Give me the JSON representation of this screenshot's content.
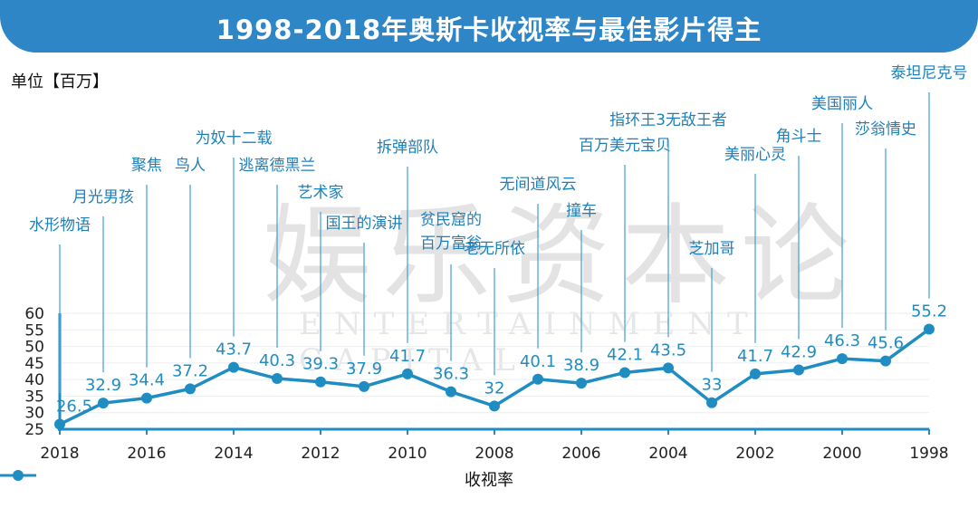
{
  "header": {
    "title": "1998-2018年奥斯卡收视率与最佳影片得主"
  },
  "unit_label": "单位【百万】",
  "legend": {
    "label": "收视率",
    "color": "#1f8dc1"
  },
  "watermark": {
    "cn": "娱乐资本论",
    "en": "ENTERTAINMENT CAPITAL"
  },
  "chart_data": {
    "type": "line",
    "title": "1998-2018年奥斯卡收视率与最佳影片得主",
    "ylabel": "单位【百万】",
    "ylim": [
      25,
      60
    ],
    "yticks": [
      25,
      30,
      35,
      40,
      45,
      50,
      55,
      60
    ],
    "xlabels": [
      "2018",
      "2016",
      "2014",
      "2012",
      "2010",
      "2008",
      "2006",
      "2004",
      "2002",
      "2000",
      "1998"
    ],
    "series": [
      {
        "name": "收视率",
        "color": "#1f8dc1",
        "x": [
          2018,
          2017,
          2016,
          2015,
          2014,
          2013,
          2012,
          2011,
          2010,
          2009,
          2008,
          2007,
          2006,
          2005,
          2004,
          2003,
          2002,
          2001,
          2000,
          1999,
          1998
        ],
        "values": [
          26.5,
          32.9,
          34.4,
          37.2,
          43.7,
          40.3,
          39.3,
          37.9,
          41.7,
          36.3,
          32,
          40.1,
          38.9,
          42.1,
          43.5,
          33,
          41.7,
          42.9,
          46.3,
          45.6,
          55.2
        ],
        "value_labels": [
          "26.5",
          "32.9",
          "34.4",
          "37.2",
          "43.7",
          "40.3",
          "39.3",
          "37.9",
          "41.7",
          "36.3",
          "32",
          "40.1",
          "38.9",
          "42.1",
          "43.5",
          "33",
          "41.7",
          "42.9",
          "46.3",
          "45.6",
          "55.2"
        ]
      }
    ],
    "winners": [
      "水形物语",
      "月光男孩",
      "聚焦",
      "鸟人",
      "为奴十二载",
      "逃离德黑兰",
      "艺术家",
      "国王的演讲",
      "拆弹部队",
      "贫民窟的|百万富翁",
      "老无所依",
      "无间道风云",
      "撞车",
      "百万美元宝贝",
      "指环王3无敌王者",
      "芝加哥",
      "美丽心灵",
      "角斗士",
      "美国丽人",
      "莎翁情史",
      "泰坦尼克号"
    ]
  }
}
